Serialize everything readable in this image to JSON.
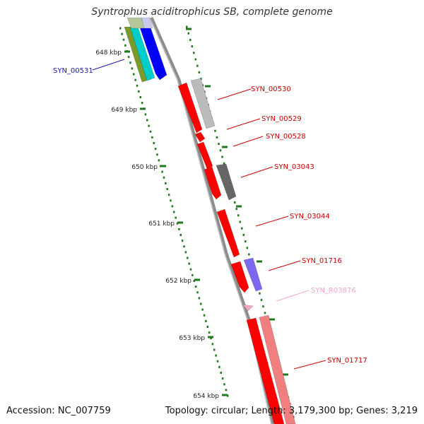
{
  "title": "Syntrophus aciditrophicus SB, complete genome",
  "footer": {
    "accession": "Accession: NC_007759",
    "summary": "Topology: circular; Length: 3,179,300 bp; Genes: 3,219"
  },
  "scale_labels": [
    "648 kbp",
    "649 kbp",
    "650 kbp",
    "651 kbp",
    "652 kbp",
    "653 kbp",
    "654 kbp"
  ],
  "gene_labels": [
    {
      "text": "SYN_00531",
      "color": "#1a1aa6"
    },
    {
      "text": "SYN_00530",
      "color": "#cc0000"
    },
    {
      "text": "SYN_00529",
      "color": "#cc0000"
    },
    {
      "text": "SYN_00528",
      "color": "#cc0000"
    },
    {
      "text": "SYN_03043",
      "color": "#cc0000"
    },
    {
      "text": "SYN_03044",
      "color": "#cc0000"
    },
    {
      "text": "SYN_01716",
      "color": "#cc0000"
    },
    {
      "text": "SYN_R03876",
      "color": "#f4a6c8"
    },
    {
      "text": "SYN_01717",
      "color": "#cc0000"
    }
  ],
  "colors": {
    "backbone": "#8c8c8c",
    "ruler": "#1f7a1f",
    "gene_red": "#ff0000",
    "gene_grey": "#bbbbbb",
    "gene_darkgrey": "#666666",
    "gene_purple": "#7b68ee",
    "gene_pink": "#f4a6c8",
    "gene_salmon": "#f08080",
    "gene_blue": "#0000ff",
    "gene_cyan": "#00cccc",
    "gene_olive": "#7a9a2a"
  }
}
